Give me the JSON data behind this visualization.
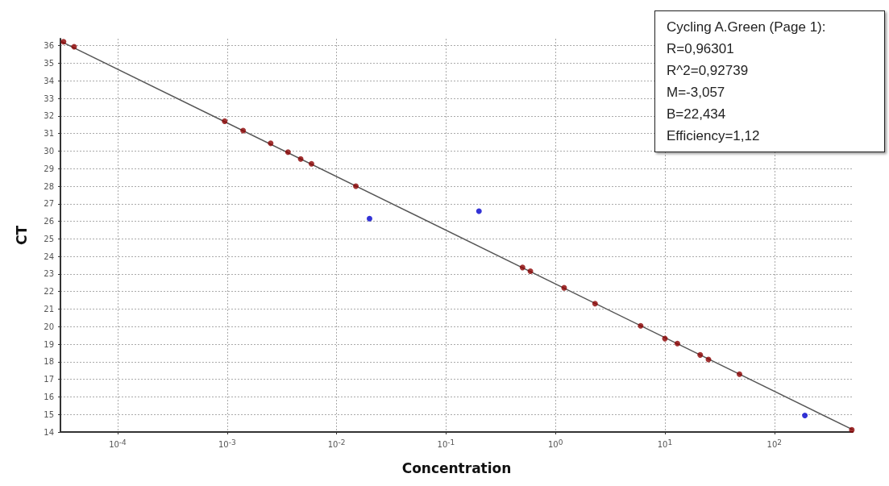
{
  "chart_data": {
    "type": "scatter",
    "xlabel": "Concentration",
    "ylabel": "CT",
    "log": "x",
    "grid": true,
    "marker": "circle",
    "xlim": [
      3e-05,
      520
    ],
    "ylim": [
      14,
      36.4
    ],
    "xticks": [
      {
        "value": 0.0001,
        "label": "10$^{-4}$"
      },
      {
        "value": 0.001,
        "label": "10$^{-3}$"
      },
      {
        "value": 0.01,
        "label": "10$^{-2}$"
      },
      {
        "value": 0.1,
        "label": "10$^{-1}$"
      },
      {
        "value": 1,
        "label": "10$^{0}$"
      },
      {
        "value": 10,
        "label": "10$^{1}$"
      },
      {
        "value": 100,
        "label": "10$^{2}$"
      }
    ],
    "yticks": [
      14,
      15,
      16,
      17,
      18,
      19,
      20,
      21,
      22,
      23,
      24,
      25,
      26,
      27,
      28,
      29,
      30,
      31,
      32,
      33,
      34,
      35,
      36
    ],
    "series": [
      {
        "type": "line",
        "color": "#555555",
        "marker": "none",
        "x": [
          3e-05,
          520
        ],
        "values": [
          36.26,
          14.13
        ]
      },
      {
        "color": "#8b0000",
        "x": [
          3.2e-05,
          4e-05,
          0.00095,
          0.0014,
          0.0025,
          0.0036,
          0.0047,
          0.0059,
          0.015,
          0.5,
          0.59,
          1.2,
          2.3,
          6.0,
          10,
          13,
          21,
          25,
          48,
          510
        ],
        "values": [
          36.23,
          35.94,
          31.7,
          31.17,
          30.44,
          29.94,
          29.55,
          29.27,
          28.0,
          23.37,
          23.16,
          22.21,
          21.31,
          20.05,
          19.32,
          19.04,
          18.39,
          18.13,
          17.29,
          14.12
        ]
      },
      {
        "color": "#0000cc",
        "x": [
          0.02,
          0.2,
          190
        ],
        "values": [
          26.15,
          26.58,
          14.94
        ]
      }
    ],
    "annotations": [
      "Cycling A.Green (Page 1):",
      "R=0,96301",
      "R^2=0,92739",
      "M=-3,057",
      "B=22,434",
      "Efficiency=1,12"
    ]
  }
}
